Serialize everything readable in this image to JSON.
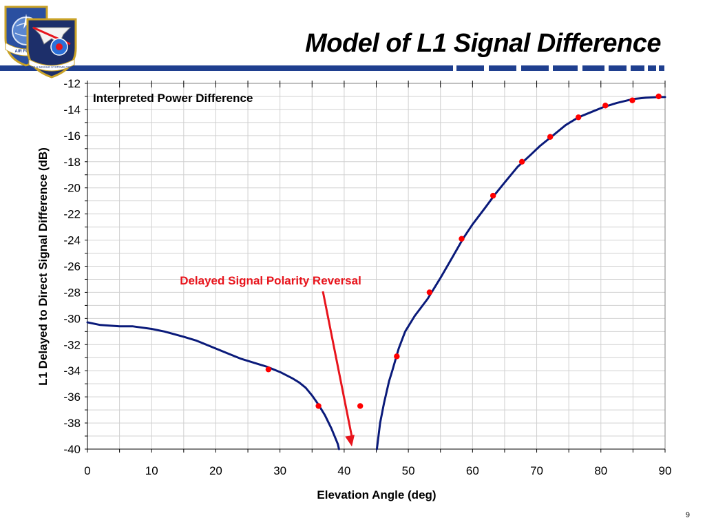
{
  "slide": {
    "title": "Model of L1 Signal Difference",
    "page_number": "9",
    "bar_color": "#1f3f8f"
  },
  "logo": {
    "name": "air-force-space-command-logos",
    "lettering": [
      "AIR FORCE",
      "SPACE & MISSILE SYSTEMS CENTER"
    ]
  },
  "chart_data": {
    "type": "line",
    "title": "Interpreted Power Difference",
    "xlabel": "Elevation Angle (deg)",
    "ylabel": "L1 Delayed to Direct Signal Difference (dB)",
    "xlim": [
      0,
      90
    ],
    "ylim": [
      -40,
      -12
    ],
    "x_ticks": [
      "0",
      "10",
      "20",
      "30",
      "40",
      "50",
      "60",
      "70",
      "80",
      "90"
    ],
    "y_ticks": [
      "-12",
      "-14",
      "-16",
      "-18",
      "-20",
      "-22",
      "-24",
      "-26",
      "-28",
      "-30",
      "-32",
      "-34",
      "-36",
      "-38",
      "-40"
    ],
    "grid": true,
    "line_color": "#0a1a7a",
    "marker_color": "#ff0000",
    "series": [
      {
        "kind": "line",
        "segments": [
          [
            [
              0,
              -30.3
            ],
            [
              2,
              -30.5
            ],
            [
              5,
              -30.6
            ],
            [
              7,
              -30.6
            ],
            [
              10,
              -30.8
            ],
            [
              12,
              -31.0
            ],
            [
              15,
              -31.4
            ],
            [
              17,
              -31.7
            ],
            [
              18,
              -31.9
            ],
            [
              20,
              -32.3
            ],
            [
              22,
              -32.7
            ],
            [
              24,
              -33.1
            ],
            [
              26,
              -33.4
            ],
            [
              28,
              -33.7
            ],
            [
              30,
              -34.1
            ],
            [
              32,
              -34.6
            ],
            [
              33,
              -34.9
            ],
            [
              34,
              -35.3
            ],
            [
              35,
              -35.9
            ],
            [
              36,
              -36.6
            ],
            [
              37,
              -37.4
            ],
            [
              38,
              -38.4
            ],
            [
              39,
              -39.6
            ],
            [
              39.2,
              -40
            ]
          ],
          [
            [
              45.1,
              -40
            ],
            [
              45.6,
              -38.0
            ],
            [
              46.2,
              -36.5
            ],
            [
              47,
              -34.8
            ],
            [
              47.5,
              -34.0
            ],
            [
              48.5,
              -32.3
            ],
            [
              49.5,
              -31.0
            ],
            [
              51,
              -29.8
            ],
            [
              53,
              -28.5
            ],
            [
              55,
              -26.9
            ],
            [
              57,
              -25.2
            ],
            [
              58.5,
              -23.9
            ],
            [
              60,
              -22.8
            ],
            [
              62,
              -21.5
            ],
            [
              63.5,
              -20.5
            ],
            [
              65,
              -19.6
            ],
            [
              67,
              -18.4
            ],
            [
              69,
              -17.5
            ],
            [
              70.5,
              -16.8
            ],
            [
              72.5,
              -16.0
            ],
            [
              74.5,
              -15.2
            ],
            [
              76.5,
              -14.6
            ],
            [
              78.5,
              -14.2
            ],
            [
              80.5,
              -13.8
            ],
            [
              82.5,
              -13.5
            ],
            [
              85,
              -13.2
            ],
            [
              87,
              -13.1
            ],
            [
              89,
              -13.05
            ],
            [
              90,
              -13.05
            ]
          ]
        ]
      },
      {
        "kind": "markers",
        "points": [
          [
            28.2,
            -33.9
          ],
          [
            36.0,
            -36.7
          ],
          [
            42.5,
            -36.7
          ],
          [
            48.2,
            -32.9
          ],
          [
            53.3,
            -28.0
          ],
          [
            58.3,
            -23.9
          ],
          [
            63.2,
            -20.6
          ],
          [
            67.7,
            -18.0
          ],
          [
            72.1,
            -16.1
          ],
          [
            76.5,
            -14.6
          ],
          [
            80.7,
            -13.7
          ],
          [
            84.9,
            -13.3
          ],
          [
            89.0,
            -13.0
          ]
        ]
      }
    ],
    "annotation": {
      "text": "Delayed Signal Polarity Reversal",
      "color": "#e8141c",
      "arrow_tip": [
        41.2,
        -39.8
      ]
    }
  }
}
